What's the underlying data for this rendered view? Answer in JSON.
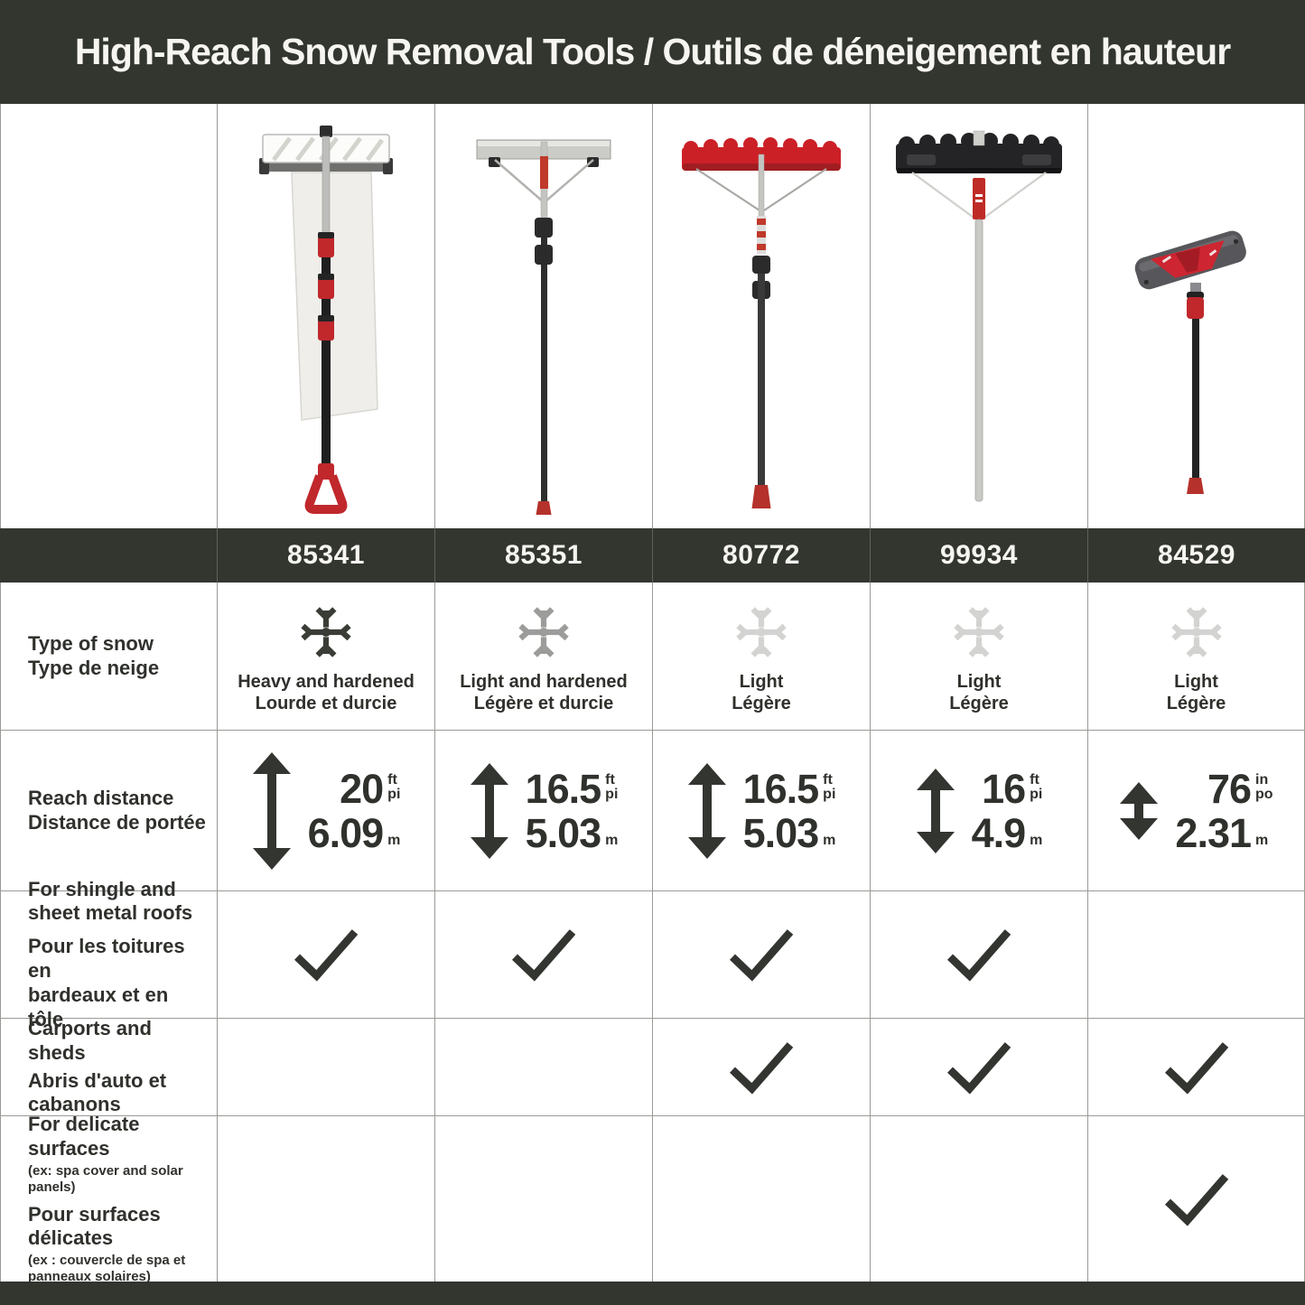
{
  "title": "High-Reach Snow Removal Tools / Outils de déneigement en hauteur",
  "colors": {
    "header_bar": "#32362f",
    "ink": "#333531",
    "grid_border": "#9a9a96",
    "accent_red": "#c0282c",
    "flake_dark": "#3a3d35",
    "flake_medium": "#9c9c9a",
    "flake_light": "#d3d3d1"
  },
  "row_labels": {
    "snow_type": "Type of snow\nType de neige",
    "reach": "Reach distance\nDistance de portée",
    "shingle_en": "For shingle and\nsheet metal roofs",
    "shingle_fr": "Pour les toitures en\nbardeaux et en tôle",
    "carports_en": "Carports and sheds",
    "carports_fr": "Abris d'auto et\ncabanons",
    "delicate_en": "For delicate surfaces",
    "delicate_en_note": "(ex: spa cover and solar panels)",
    "delicate_fr": "Pour surfaces\ndélicates",
    "delicate_fr_note": "(ex : couvercle de spa et\npanneaux solaires)"
  },
  "products": [
    {
      "sku": "85341",
      "image": "roof-rake-with-slide-sheet",
      "snow": "Heavy and hardened\nLourde et durcie",
      "flake_color": "#3a3d35",
      "imperial": "20",
      "imperial_units": "ft\npi",
      "metric": "6.09",
      "metric_unit": "m",
      "arrow_h": 130,
      "shingle": true,
      "carports": false,
      "delicate": false
    },
    {
      "sku": "85351",
      "image": "aluminum-telescopic-roof-rake",
      "snow": "Light and hardened\nLégère et durcie",
      "flake_color": "#9c9c9a",
      "imperial": "16.5",
      "imperial_units": "ft\npi",
      "metric": "5.03",
      "metric_unit": "m",
      "arrow_h": 106,
      "shingle": true,
      "carports": false,
      "delicate": false
    },
    {
      "sku": "80772",
      "image": "red-poly-blade-roof-rake",
      "snow": "Light\nLégère",
      "flake_color": "#d3d3d1",
      "imperial": "16.5",
      "imperial_units": "ft\npi",
      "metric": "5.03",
      "metric_unit": "m",
      "arrow_h": 106,
      "shingle": true,
      "carports": true,
      "delicate": false
    },
    {
      "sku": "99934",
      "image": "black-poly-blade-roof-rake",
      "snow": "Light\nLégère",
      "flake_color": "#d3d3d1",
      "imperial": "16",
      "imperial_units": "ft\npi",
      "metric": "4.9",
      "metric_unit": "m",
      "arrow_h": 94,
      "shingle": true,
      "carports": true,
      "delicate": false
    },
    {
      "sku": "84529",
      "image": "snow-pusher-for-delicate-surfaces",
      "snow": "Light\nLégère",
      "flake_color": "#d3d3d1",
      "imperial": "76",
      "imperial_units": "in\npo",
      "metric": "2.31",
      "metric_unit": "m",
      "arrow_h": 64,
      "shingle": false,
      "carports": true,
      "delicate": true
    }
  ],
  "chart_data": {
    "type": "table",
    "title": "High-Reach Snow Removal Tools / Outils de déneigement en hauteur",
    "columns": [
      "85341",
      "85351",
      "80772",
      "99934",
      "84529"
    ],
    "rows": [
      {
        "label": "Type of snow / Type de neige",
        "values": [
          "Heavy and hardened / Lourde et durcie",
          "Light and hardened / Légère et durcie",
          "Light / Légère",
          "Light / Légère",
          "Light / Légère"
        ]
      },
      {
        "label": "Reach distance / Distance de portée",
        "values": [
          "20 ft/pi — 6.09 m",
          "16.5 ft/pi — 5.03 m",
          "16.5 ft/pi — 5.03 m",
          "16 ft/pi — 4.9 m",
          "76 in/po — 2.31 m"
        ]
      },
      {
        "label": "For shingle and sheet metal roofs / Pour les toitures en bardeaux et en tôle",
        "values": [
          true,
          true,
          true,
          true,
          false
        ]
      },
      {
        "label": "Carports and sheds / Abris d'auto et cabanons",
        "values": [
          false,
          false,
          true,
          true,
          true
        ]
      },
      {
        "label": "For delicate surfaces (ex: spa cover and solar panels) / Pour surfaces délicates (ex : couvercle de spa et panneaux solaires)",
        "values": [
          false,
          false,
          false,
          false,
          true
        ]
      }
    ],
    "legend_position": "none",
    "grid": true
  }
}
